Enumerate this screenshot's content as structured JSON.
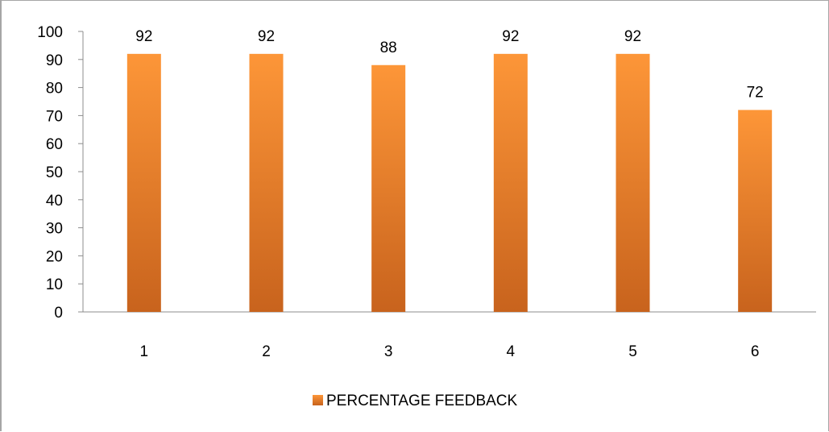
{
  "chart_data": {
    "type": "bar",
    "categories": [
      "1",
      "2",
      "3",
      "4",
      "5",
      "6"
    ],
    "series": [
      {
        "name": "PERCENTAGE FEEDBACK",
        "values": [
          92,
          92,
          88,
          92,
          92,
          72
        ]
      }
    ],
    "title": "",
    "xlabel": "",
    "ylabel": "",
    "ylim": [
      0,
      100
    ],
    "yticks": [
      0,
      10,
      20,
      30,
      40,
      50,
      60,
      70,
      80,
      90,
      100
    ],
    "grid": false,
    "data_labels": true,
    "legend_position": "bottom",
    "colors": {
      "bar_top": "#fd9638",
      "bar_bottom": "#c8631d",
      "axis": "#8c8c8c"
    }
  }
}
